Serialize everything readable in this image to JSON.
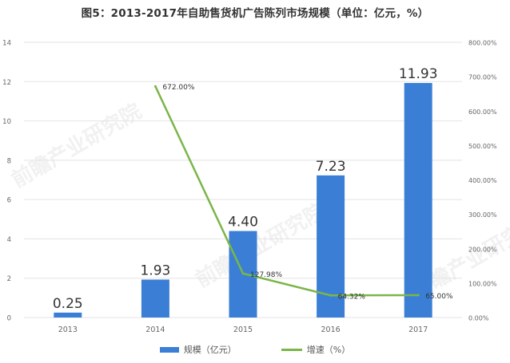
{
  "title": "图5：2013-2017年自助售货机广告陈列市场规模（单位：亿元，%）",
  "legend": {
    "bar": "规模（亿元）",
    "line": "增速（%）"
  },
  "colors": {
    "bar": "#3a7fd5",
    "line": "#7ab648",
    "grid": "#e3e3e3",
    "axis_text": "#666666"
  },
  "chart_data": {
    "type": "bar",
    "categories": [
      "2013",
      "2014",
      "2015",
      "2016",
      "2017"
    ],
    "series": [
      {
        "name": "规模（亿元）",
        "type": "bar",
        "axis": "left",
        "values": [
          0.25,
          1.93,
          4.4,
          7.23,
          11.93
        ],
        "labels": [
          "0.25",
          "1.93",
          "4.40",
          "7.23",
          "11.93"
        ]
      },
      {
        "name": "增速（%）",
        "type": "line",
        "axis": "right",
        "values": [
          null,
          672.0,
          127.98,
          64.32,
          65.0
        ],
        "labels": [
          "",
          "672.00%",
          "127.98%",
          "64.32%",
          "65.00%"
        ]
      }
    ],
    "y_left": {
      "ylim": [
        0,
        14
      ],
      "ticks": [
        "0",
        "2",
        "4",
        "6",
        "8",
        "10",
        "12",
        "14"
      ]
    },
    "y_right": {
      "ylim": [
        0,
        800
      ],
      "ticks": [
        "0.00%",
        "100.00%",
        "200.00%",
        "300.00%",
        "400.00%",
        "500.00%",
        "600.00%",
        "700.00%",
        "800.00%"
      ]
    },
    "grid": true,
    "legend_position": "bottom"
  }
}
